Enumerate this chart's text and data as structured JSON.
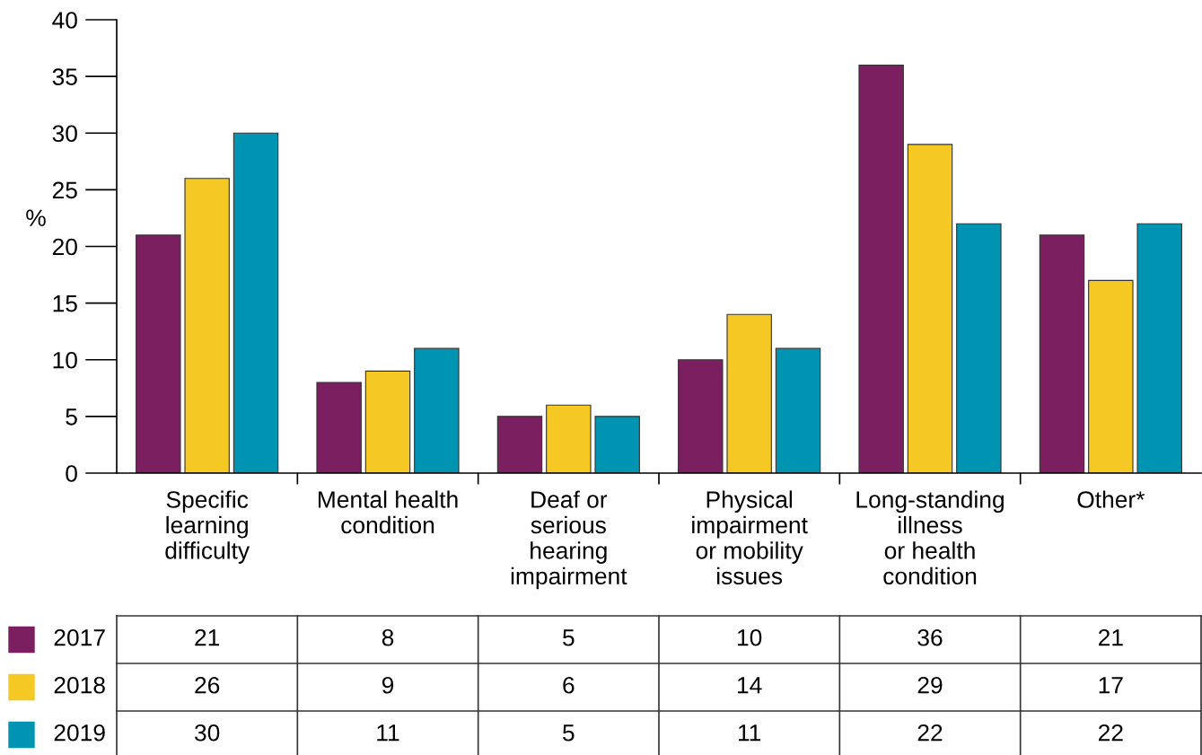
{
  "chart_data": {
    "type": "bar",
    "ylabel": "%",
    "categories": [
      "Specific\nlearning\ndifficulty",
      "Mental health\ncondition",
      "Deaf or\nserious\nhearing\nimpairment",
      "Physical\nimpairment\nor mobility\nissues",
      "Long-standing\nillness\nor health\ncondition",
      "Other*"
    ],
    "series": [
      {
        "name": "2017",
        "color": "#7b1f61",
        "values": [
          21,
          8,
          5,
          10,
          36,
          21
        ]
      },
      {
        "name": "2018",
        "color": "#f5c823",
        "values": [
          26,
          9,
          6,
          14,
          29,
          17
        ]
      },
      {
        "name": "2019",
        "color": "#0094b3",
        "values": [
          30,
          11,
          5,
          11,
          22,
          22
        ]
      }
    ],
    "ylim": [
      0,
      40
    ],
    "yticks": [
      0,
      5,
      10,
      15,
      20,
      25,
      30,
      35,
      40
    ],
    "grid": false,
    "legend": "bottom left",
    "data_labels": true
  }
}
